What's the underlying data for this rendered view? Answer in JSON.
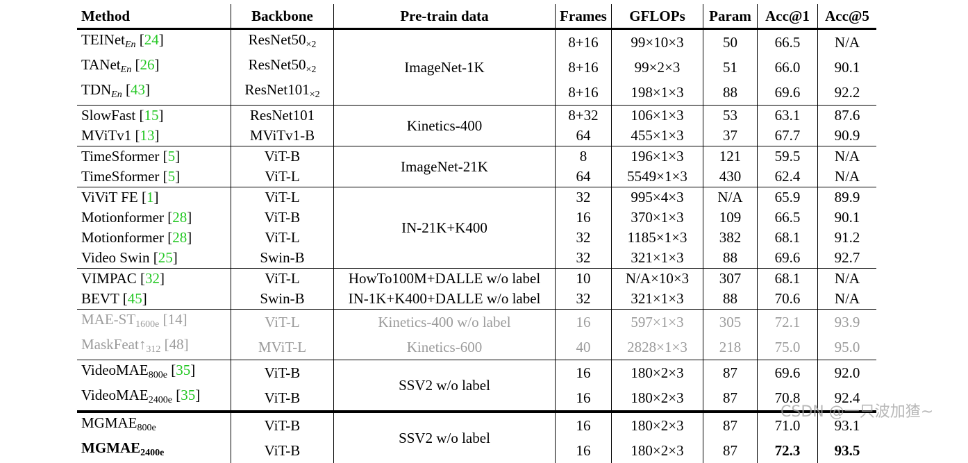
{
  "headers": {
    "method": "Method",
    "backbone": "Backbone",
    "pretrain": "Pre-train data",
    "frames": "Frames",
    "gflops": "GFLOPs",
    "param": "Param",
    "acc1": "Acc@1",
    "acc5": "Acc@5"
  },
  "rows": [
    {
      "name": "TEINet",
      "sub": "En",
      "ref": "24",
      "backbone": "ResNet50",
      "bsub": "×2",
      "pretrain": "ImageNet-1K",
      "frames": "8+16",
      "gflops": "99×10×3",
      "param": "50",
      "acc1": "66.5",
      "acc5": "N/A"
    },
    {
      "name": "TANet",
      "sub": "En",
      "ref": "26",
      "backbone": "ResNet50",
      "bsub": "×2",
      "frames": "8+16",
      "gflops": "99×2×3",
      "param": "51",
      "acc1": "66.0",
      "acc5": "90.1"
    },
    {
      "name": "TDN",
      "sub": "En",
      "ref": "43",
      "backbone": "ResNet101",
      "bsub": "×2",
      "frames": "8+16",
      "gflops": "198×1×3",
      "param": "88",
      "acc1": "69.6",
      "acc5": "92.2"
    },
    {
      "name": "SlowFast",
      "ref": "15",
      "backbone": "ResNet101",
      "pretrain": "Kinetics-400",
      "frames": "8+32",
      "gflops": "106×1×3",
      "param": "53",
      "acc1": "63.1",
      "acc5": "87.6"
    },
    {
      "name": "MViTv1",
      "ref": "13",
      "backbone": "MViTv1-B",
      "frames": "64",
      "gflops": "455×1×3",
      "param": "37",
      "acc1": "67.7",
      "acc5": "90.9"
    },
    {
      "name": "TimeSformer",
      "ref": "5",
      "backbone": "ViT-B",
      "pretrain": "ImageNet-21K",
      "frames": "8",
      "gflops": "196×1×3",
      "param": "121",
      "acc1": "59.5",
      "acc5": "N/A"
    },
    {
      "name": "TimeSformer",
      "ref": "5",
      "backbone": "ViT-L",
      "frames": "64",
      "gflops": "5549×1×3",
      "param": "430",
      "acc1": "62.4",
      "acc5": "N/A"
    },
    {
      "name": "ViViT FE",
      "ref": "1",
      "backbone": "ViT-L",
      "pretrain": "IN-21K+K400",
      "frames": "32",
      "gflops": "995×4×3",
      "param": "N/A",
      "acc1": "65.9",
      "acc5": "89.9"
    },
    {
      "name": "Motionformer",
      "ref": "28",
      "backbone": "ViT-B",
      "frames": "16",
      "gflops": "370×1×3",
      "param": "109",
      "acc1": "66.5",
      "acc5": "90.1"
    },
    {
      "name": "Motionformer",
      "ref": "28",
      "backbone": "ViT-L",
      "frames": "32",
      "gflops": "1185×1×3",
      "param": "382",
      "acc1": "68.1",
      "acc5": "91.2"
    },
    {
      "name": "Video Swin",
      "ref": "25",
      "backbone": "Swin-B",
      "frames": "32",
      "gflops": "321×1×3",
      "param": "88",
      "acc1": "69.6",
      "acc5": "92.7"
    },
    {
      "name": "VIMPAC",
      "ref": "32",
      "backbone": "ViT-L",
      "pretrain": "HowTo100M+DALLE w/o label",
      "frames": "10",
      "gflops": "N/A×10×3",
      "param": "307",
      "acc1": "68.1",
      "acc5": "N/A"
    },
    {
      "name": "BEVT ",
      "ref": "45",
      "backbone": "Swin-B",
      "pretrain": "IN-1K+K400+DALLE w/o label",
      "frames": "32",
      "gflops": "321×1×3",
      "param": "88",
      "acc1": "70.6",
      "acc5": "N/A"
    },
    {
      "name": "MAE-ST",
      "subn": "1600e",
      "ref": "14",
      "backbone": "ViT-L",
      "pretrain": "Kinetics-400 w/o label",
      "frames": "16",
      "gflops": "597×1×3",
      "param": "305",
      "acc1": "72.1",
      "acc5": "93.9"
    },
    {
      "name": "MaskFeat↑",
      "subn": "312",
      "ref": "48",
      "backbone": "MViT-L",
      "pretrain": "Kinetics-600",
      "frames": "40",
      "gflops": "2828×1×3",
      "param": "218",
      "acc1": "75.0",
      "acc5": "95.0"
    },
    {
      "name": "VideoMAE",
      "subn": "800e",
      "ref": "35",
      "backbone": "ViT-B",
      "pretrain": "SSV2 w/o label",
      "frames": "16",
      "gflops": "180×2×3",
      "param": "87",
      "acc1": "69.6",
      "acc5": "92.0"
    },
    {
      "name": "VideoMAE",
      "subn": "2400e",
      "ref": "35",
      "backbone": "ViT-B",
      "frames": "16",
      "gflops": "180×2×3",
      "param": "87",
      "acc1": "70.8",
      "acc5": "92.4"
    },
    {
      "name": "MGMAE",
      "subn": "800e",
      "backbone": "ViT-B",
      "pretrain": "SSV2 w/o label",
      "frames": "16",
      "gflops": "180×2×3",
      "param": "87",
      "acc1": "71.0",
      "acc5": "93.1"
    },
    {
      "name": "MGMAE",
      "subn": "2400e",
      "backbone": "ViT-B",
      "frames": "16",
      "gflops": "180×2×3",
      "param": "87",
      "acc1": "72.3",
      "acc5": "93.5"
    }
  ],
  "watermark": "CSDN @一只波加猹~"
}
